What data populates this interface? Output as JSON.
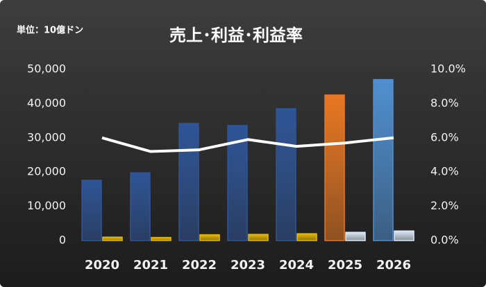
{
  "chart_data": {
    "type": "bar",
    "title": "売上･利益･利益率",
    "unit_note": "単位：10億ドン",
    "categories": [
      "2020",
      "2021",
      "2022",
      "2023",
      "2024",
      "2025",
      "2026"
    ],
    "series": [
      {
        "type": "bar",
        "colors": [
          "#2f5597",
          "#2f5597",
          "#2f5597",
          "#2f5597",
          "#2f5597",
          "#e87722",
          "#4f8fd0"
        ],
        "values": [
          17600,
          19800,
          34200,
          33600,
          38500,
          42500,
          47000
        ]
      },
      {
        "type": "bar",
        "colors": [
          "#e6b800",
          "#e6b800",
          "#e6b800",
          "#e6b800",
          "#e6b800",
          "#dce9f7",
          "#dce9f7"
        ],
        "values": [
          1000,
          900,
          1700,
          1800,
          2000,
          2400,
          2800
        ]
      },
      {
        "type": "line",
        "axis": "y2",
        "color": "#ffffff",
        "values": [
          6.0,
          5.2,
          5.3,
          5.9,
          5.5,
          5.7,
          6.0
        ]
      }
    ],
    "ylim": [
      0,
      50000
    ],
    "yticks": [
      0,
      {
        "value": 10000,
        "label": "10,000"
      },
      {
        "value": 20000,
        "label": "20,000"
      },
      {
        "value": 30000,
        "label": "30,000"
      },
      {
        "value": 40000,
        "label": "40,000"
      },
      {
        "value": 50000,
        "label": "50,000"
      }
    ],
    "y2lim": [
      0,
      10
    ],
    "y2ticks": [
      {
        "value": 0,
        "label": "0.0%"
      },
      {
        "value": 2,
        "label": "2.0%"
      },
      {
        "value": 4,
        "label": "4.0%"
      },
      {
        "value": 6,
        "label": "6.0%"
      },
      {
        "value": 8,
        "label": "8.0%"
      },
      {
        "value": 10,
        "label": "10.0%"
      }
    ]
  }
}
